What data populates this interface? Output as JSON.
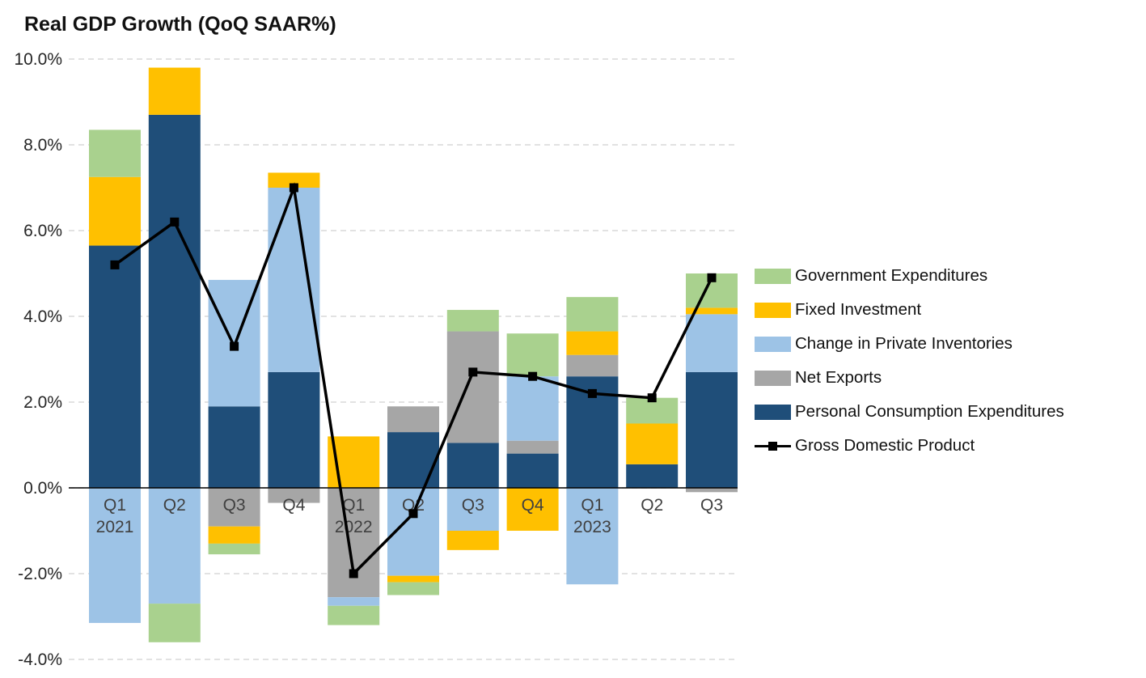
{
  "chart_data": {
    "type": "bar",
    "stacked": true,
    "title": "Real GDP Growth (QoQ SAAR%)",
    "categories": [
      {
        "label": "Q1",
        "sublabel": "2021"
      },
      {
        "label": "Q2",
        "sublabel": ""
      },
      {
        "label": "Q3",
        "sublabel": ""
      },
      {
        "label": "Q4",
        "sublabel": ""
      },
      {
        "label": "Q1",
        "sublabel": "2022"
      },
      {
        "label": "Q2",
        "sublabel": ""
      },
      {
        "label": "Q3",
        "sublabel": ""
      },
      {
        "label": "Q4",
        "sublabel": ""
      },
      {
        "label": "Q1",
        "sublabel": "2023"
      },
      {
        "label": "Q2",
        "sublabel": ""
      },
      {
        "label": "Q3",
        "sublabel": ""
      }
    ],
    "series": [
      {
        "name": "Personal Consumption Expenditures",
        "color": "#1f4e79",
        "values": [
          5.65,
          8.7,
          1.9,
          2.7,
          0.0,
          1.3,
          1.05,
          0.8,
          2.6,
          0.55,
          2.7
        ]
      },
      {
        "name": "Net Exports",
        "color": "#a6a6a6",
        "values": [
          0.0,
          0.0,
          -0.9,
          -0.35,
          -2.55,
          0.6,
          2.6,
          0.3,
          0.5,
          0.0,
          -0.1
        ]
      },
      {
        "name": "Change in Private Inventories",
        "color": "#9dc3e6",
        "values": [
          -3.15,
          -2.7,
          2.95,
          4.3,
          -0.2,
          -2.05,
          -1.0,
          1.5,
          -2.25,
          0.0,
          1.35
        ]
      },
      {
        "name": "Fixed Investment",
        "color": "#ffc000",
        "values": [
          1.6,
          1.1,
          -0.4,
          0.35,
          1.2,
          -0.15,
          -0.45,
          -1.0,
          0.55,
          0.95,
          0.15
        ]
      },
      {
        "name": "Government Expenditures",
        "color": "#a9d18e",
        "values": [
          1.1,
          -0.9,
          -0.25,
          0.0,
          -0.45,
          -0.3,
          0.5,
          1.0,
          0.8,
          0.6,
          0.8
        ]
      }
    ],
    "line_series": {
      "name": "Gross Domestic Product",
      "color": "#000000",
      "marker": "square",
      "values": [
        5.2,
        6.2,
        3.3,
        7.0,
        -2.0,
        -0.6,
        2.7,
        2.6,
        2.2,
        2.1,
        4.9
      ]
    },
    "yticks": [
      {
        "label": "10.0%",
        "value": 10
      },
      {
        "label": "8.0%",
        "value": 8
      },
      {
        "label": "6.0%",
        "value": 6
      },
      {
        "label": "4.0%",
        "value": 4
      },
      {
        "label": "2.0%",
        "value": 2
      },
      {
        "label": "0.0%",
        "value": 0
      },
      {
        "label": "-2.0%",
        "value": -2
      },
      {
        "label": "-4.0%",
        "value": -4
      }
    ],
    "ylim": [
      -4,
      10
    ],
    "grid": "horizontal-dashed",
    "legend_position": "right",
    "legend": [
      {
        "label": "Government Expenditures",
        "color": "#a9d18e",
        "type": "box"
      },
      {
        "label": "Fixed Investment",
        "color": "#ffc000",
        "type": "box"
      },
      {
        "label": "Change in Private Inventories",
        "color": "#9dc3e6",
        "type": "box"
      },
      {
        "label": "Net Exports",
        "color": "#a6a6a6",
        "type": "box"
      },
      {
        "label": "Personal Consumption Expenditures",
        "color": "#1f4e79",
        "type": "box"
      },
      {
        "label": "Gross Domestic Product",
        "color": "#000000",
        "type": "line-marker"
      }
    ],
    "colors": {
      "grid": "#d9d9d9",
      "zero_axis": "#000000",
      "background": "#ffffff"
    }
  }
}
